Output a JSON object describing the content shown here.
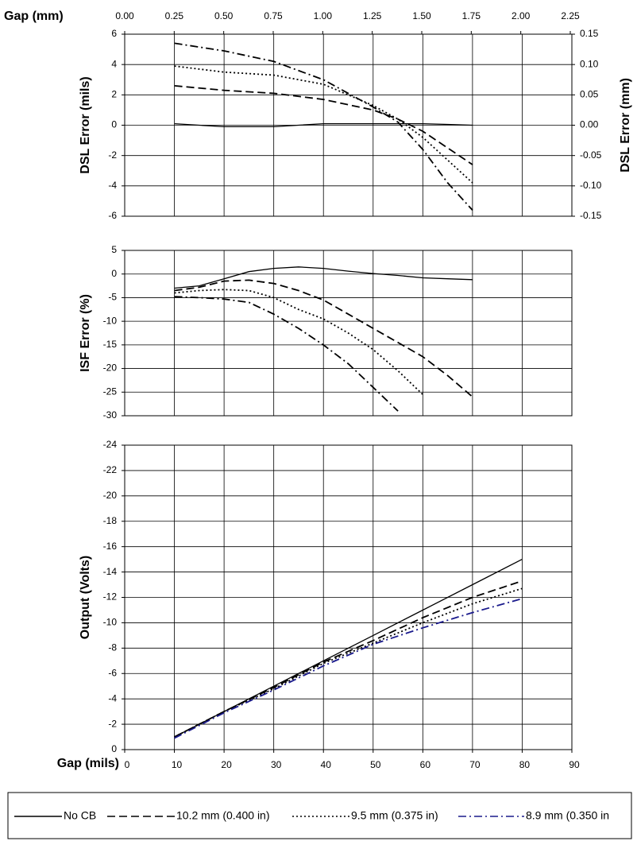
{
  "chart_data": [
    {
      "type": "line",
      "x_label": "Gap (mm)",
      "y_label": "DSL Error (mils)",
      "y2_label": "DSL Error (mm)",
      "x": [
        10,
        20,
        30,
        40,
        50,
        55,
        60,
        65,
        70
      ],
      "xlim": [
        0,
        90
      ],
      "x2lim": [
        0,
        2.25
      ],
      "x2ticks": [
        {
          "value": 0,
          "label": "0.00"
        },
        0.25,
        {
          "value": 0.5,
          "label": "0.50"
        },
        0.75,
        {
          "value": 1,
          "label": "1.00"
        },
        1.25,
        {
          "value": 1.5,
          "label": "1.50"
        },
        1.75,
        {
          "value": 2,
          "label": "2.00"
        },
        2.25
      ],
      "ylim": [
        -6,
        6
      ],
      "yticks": [
        -6,
        -4,
        -2,
        0,
        2,
        4,
        6
      ],
      "y2lim": [
        -0.15,
        0.15
      ],
      "y2ticks": [
        -0.15,
        {
          "value": -0.1,
          "label": "-0.10"
        },
        -0.05,
        {
          "value": 0,
          "label": "0.00"
        },
        0.05,
        {
          "value": 0.1,
          "label": "0.10"
        },
        0.15
      ],
      "grid": true,
      "series": [
        {
          "color": "#000000",
          "dash": "solid",
          "values": [
            0.1,
            -0.1,
            -0.1,
            0.1,
            0.1,
            0.1,
            0.1,
            0.05,
            0.0
          ]
        },
        {
          "color": "#000000",
          "dash": "dash",
          "values": [
            2.6,
            2.3,
            2.1,
            1.7,
            1.0,
            0.4,
            -0.4,
            -1.5,
            -2.6
          ]
        },
        {
          "color": "#000000",
          "dash": "dot",
          "values": [
            3.9,
            3.5,
            3.3,
            2.7,
            1.3,
            0.4,
            -0.8,
            -2.3,
            -3.8
          ]
        },
        {
          "color": "#000000",
          "dash": "dashdot",
          "values": [
            5.4,
            4.9,
            4.2,
            3.0,
            1.2,
            0.2,
            -1.6,
            -3.8,
            -5.6
          ]
        }
      ]
    },
    {
      "type": "line",
      "y_label": "ISF Error (%)",
      "x": [
        10,
        15,
        20,
        25,
        30,
        35,
        40,
        45,
        50,
        55,
        60,
        65,
        70
      ],
      "xlim": [
        0,
        90
      ],
      "ylim": [
        -30,
        5
      ],
      "yticks": [
        -30,
        -25,
        -20,
        -15,
        -10,
        -5,
        0,
        5
      ],
      "grid": true,
      "series": [
        {
          "color": "#000000",
          "dash": "solid",
          "values": [
            -3.0,
            -2.5,
            -1.0,
            0.5,
            1.2,
            1.5,
            1.2,
            0.6,
            0.1,
            -0.3,
            -0.8,
            -1.0,
            -1.2
          ]
        },
        {
          "color": "#000000",
          "dash": "dash",
          "values": [
            -3.5,
            -2.8,
            -1.5,
            -1.3,
            -2.0,
            -3.5,
            -5.5,
            -8.5,
            -11.5,
            -14.5,
            -17.5,
            -21.5,
            -26.0
          ]
        },
        {
          "color": "#000000",
          "dash": "dot",
          "values": [
            -4.0,
            -3.5,
            -3.3,
            -3.5,
            -5.0,
            -7.5,
            -9.5,
            -12.5,
            -16.0,
            -20.5,
            -25.5,
            null,
            null
          ]
        },
        {
          "color": "#000000",
          "dash": "dashdot",
          "values": [
            -4.8,
            -5.0,
            -5.3,
            -6.0,
            -8.5,
            -11.5,
            -15.0,
            -19.0,
            -24.0,
            -29.0,
            null,
            null,
            null
          ]
        }
      ]
    },
    {
      "type": "line",
      "x_label": "Gap (mils)",
      "y_label": "Output (Volts)",
      "x": [
        10,
        20,
        30,
        40,
        50,
        60,
        70,
        80
      ],
      "xlim": [
        0,
        90
      ],
      "xticks": [
        0,
        10,
        20,
        30,
        40,
        50,
        60,
        70,
        80,
        90
      ],
      "ylim": [
        0,
        -24
      ],
      "yticks": [
        0,
        -2,
        -4,
        -6,
        -8,
        -10,
        -12,
        -14,
        -16,
        -18,
        -20,
        -22,
        -24
      ],
      "grid": true,
      "legend": "bottom",
      "series": [
        {
          "name": "No CB",
          "color": "#000000",
          "dash": "solid",
          "values": [
            -1.0,
            -3.0,
            -5.0,
            -7.0,
            -9.0,
            -11.0,
            -13.0,
            -15.0
          ]
        },
        {
          "name": "10.2 mm (0.400 in)",
          "color": "#000000",
          "dash": "dash",
          "values": [
            -1.0,
            -3.0,
            -4.9,
            -6.9,
            -8.6,
            -10.4,
            -12.0,
            -13.3
          ]
        },
        {
          "name": "9.5 mm (0.375 in)",
          "color": "#000000",
          "dash": "dot",
          "values": [
            -1.0,
            -3.0,
            -4.8,
            -6.8,
            -8.4,
            -10.0,
            -11.5,
            -12.7
          ]
        },
        {
          "name": "8.9 mm (0.350 in",
          "color": "#1a1a8c",
          "dash": "dashdot",
          "values": [
            -0.9,
            -2.9,
            -4.7,
            -6.6,
            -8.3,
            -9.6,
            -10.8,
            -11.9
          ]
        }
      ]
    }
  ]
}
